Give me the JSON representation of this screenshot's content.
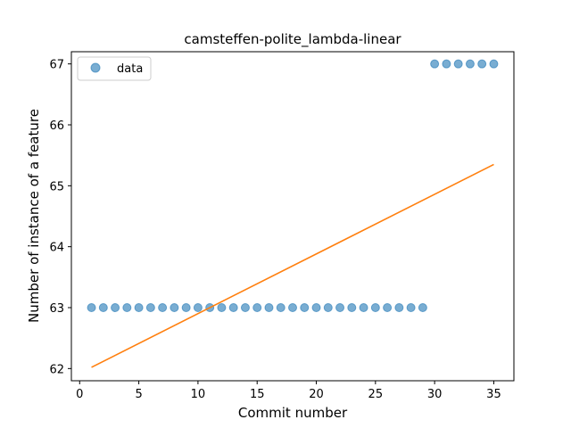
{
  "chart_data": {
    "type": "scatter",
    "title": "camsteffen-polite_lambda-linear",
    "xlabel": "Commit number",
    "ylabel": "Number of instance of a feature",
    "xlim": [
      -0.7,
      36.7
    ],
    "ylim": [
      61.8,
      67.2
    ],
    "xticks": [
      0,
      5,
      10,
      15,
      20,
      25,
      30,
      35
    ],
    "yticks": [
      62,
      63,
      64,
      65,
      66,
      67
    ],
    "grid": false,
    "legend": {
      "placement": "top-left",
      "entries": [
        "data"
      ]
    },
    "colors": {
      "points": "#1f77b4",
      "fit": "#ff7f0e"
    },
    "series": [
      {
        "name": "data",
        "kind": "scatter",
        "x": [
          1,
          2,
          3,
          4,
          5,
          6,
          7,
          8,
          9,
          10,
          11,
          12,
          13,
          14,
          15,
          16,
          17,
          18,
          19,
          20,
          21,
          22,
          23,
          24,
          25,
          26,
          27,
          28,
          29,
          30,
          31,
          32,
          33,
          34,
          35
        ],
        "y": [
          63,
          63,
          63,
          63,
          63,
          63,
          63,
          63,
          63,
          63,
          63,
          63,
          63,
          63,
          63,
          63,
          63,
          63,
          63,
          63,
          63,
          63,
          63,
          63,
          63,
          63,
          63,
          63,
          63,
          67,
          67,
          67,
          67,
          67,
          67
        ]
      },
      {
        "kind": "line",
        "x": [
          1,
          35
        ],
        "y": [
          62.02,
          65.35
        ]
      }
    ]
  }
}
